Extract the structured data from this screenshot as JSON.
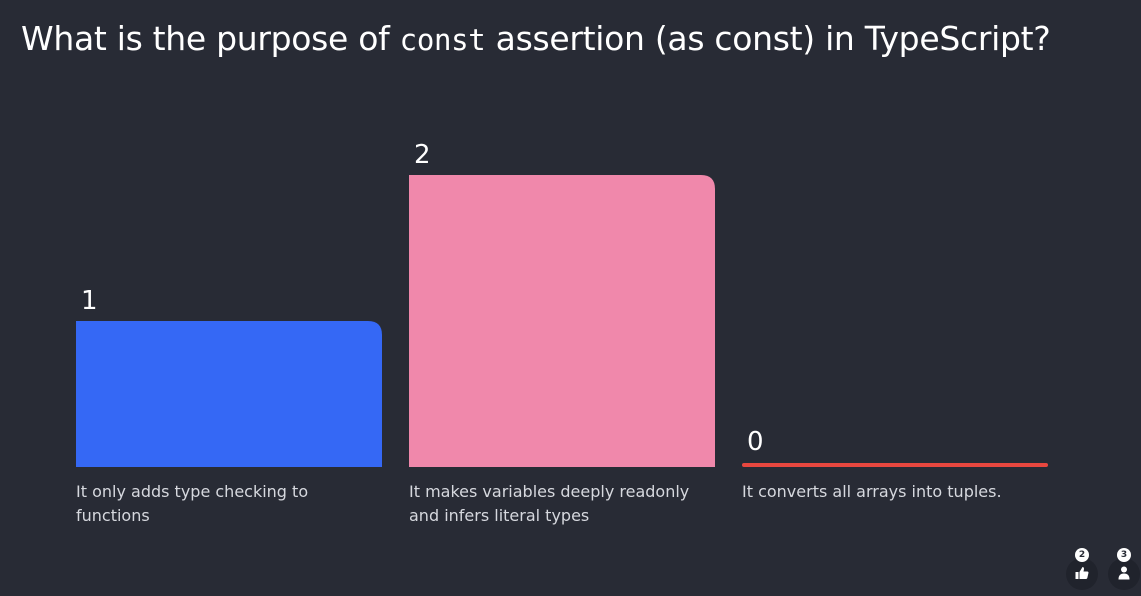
{
  "question": {
    "prefix": "What is the purpose of ",
    "code": "const",
    "suffix": " assertion (as const) in TypeScript?"
  },
  "chart_data": {
    "type": "bar",
    "categories": [
      "It only adds type checking to functions",
      "It makes variables deeply readonly and infers literal types",
      "It converts all arrays into tuples."
    ],
    "values": [
      1,
      2,
      0
    ],
    "colors": [
      "#3568f5",
      "#f088ab",
      "#e8473f"
    ],
    "ylim": [
      0,
      2
    ],
    "grid": false,
    "title": "",
    "xlabel": "",
    "ylabel": ""
  },
  "footer": {
    "reactions": {
      "count": "2",
      "icon": "thumbs-up-icon"
    },
    "participants": {
      "count": "3",
      "icon": "person-icon"
    }
  }
}
